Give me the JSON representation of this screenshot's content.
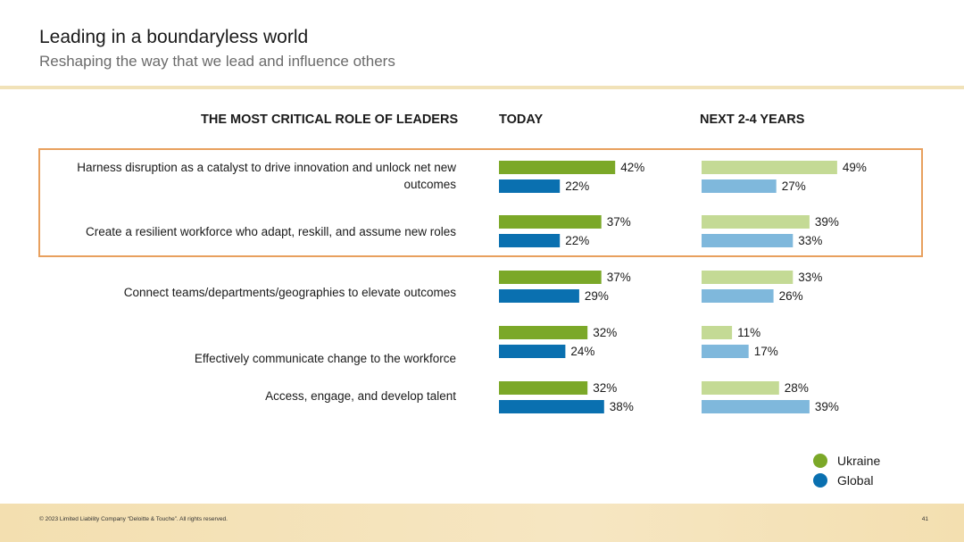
{
  "header": {
    "title": "Leading in a boundaryless world",
    "subtitle": "Reshaping the way that we lead and influence others"
  },
  "columns": {
    "role": "THE MOST CRITICAL ROLE OF LEADERS",
    "today": "TODAY",
    "future": "NEXT 2-4 YEARS"
  },
  "chart_data": {
    "type": "bar",
    "orientation": "horizontal",
    "categories": [
      "Harness disruption as a catalyst to drive innovation and unlock net new outcomes",
      "Create a resilient workforce who adapt, reskill, and assume new roles",
      "Connect teams/departments/geographies to elevate outcomes",
      "Effectively communicate change to the workforce",
      "Access, engage, and develop talent"
    ],
    "panels": [
      {
        "name": "TODAY",
        "series": [
          {
            "name": "Ukraine",
            "color": "#7ba828",
            "values": [
              42,
              37,
              37,
              32,
              32
            ]
          },
          {
            "name": "Global",
            "color": "#0a70b0",
            "values": [
              22,
              22,
              29,
              24,
              38
            ]
          }
        ]
      },
      {
        "name": "NEXT 2-4 YEARS",
        "series": [
          {
            "name": "Ukraine",
            "color": "#c4da95",
            "values": [
              49,
              39,
              33,
              11,
              28
            ]
          },
          {
            "name": "Global",
            "color": "#7fb8dc",
            "values": [
              27,
              33,
              26,
              17,
              39
            ]
          }
        ]
      }
    ],
    "value_suffix": "%",
    "legend": [
      {
        "label": "Ukraine",
        "color": "#7ba828"
      },
      {
        "label": "Global",
        "color": "#0a70b0"
      }
    ],
    "highlighted_categories": [
      0,
      1
    ],
    "legend_position": "bottom-right"
  },
  "footer": {
    "copyright": "© 2023 Limited Liability Company “Deloitte & Touche”. All rights reserved.",
    "page": "41"
  }
}
